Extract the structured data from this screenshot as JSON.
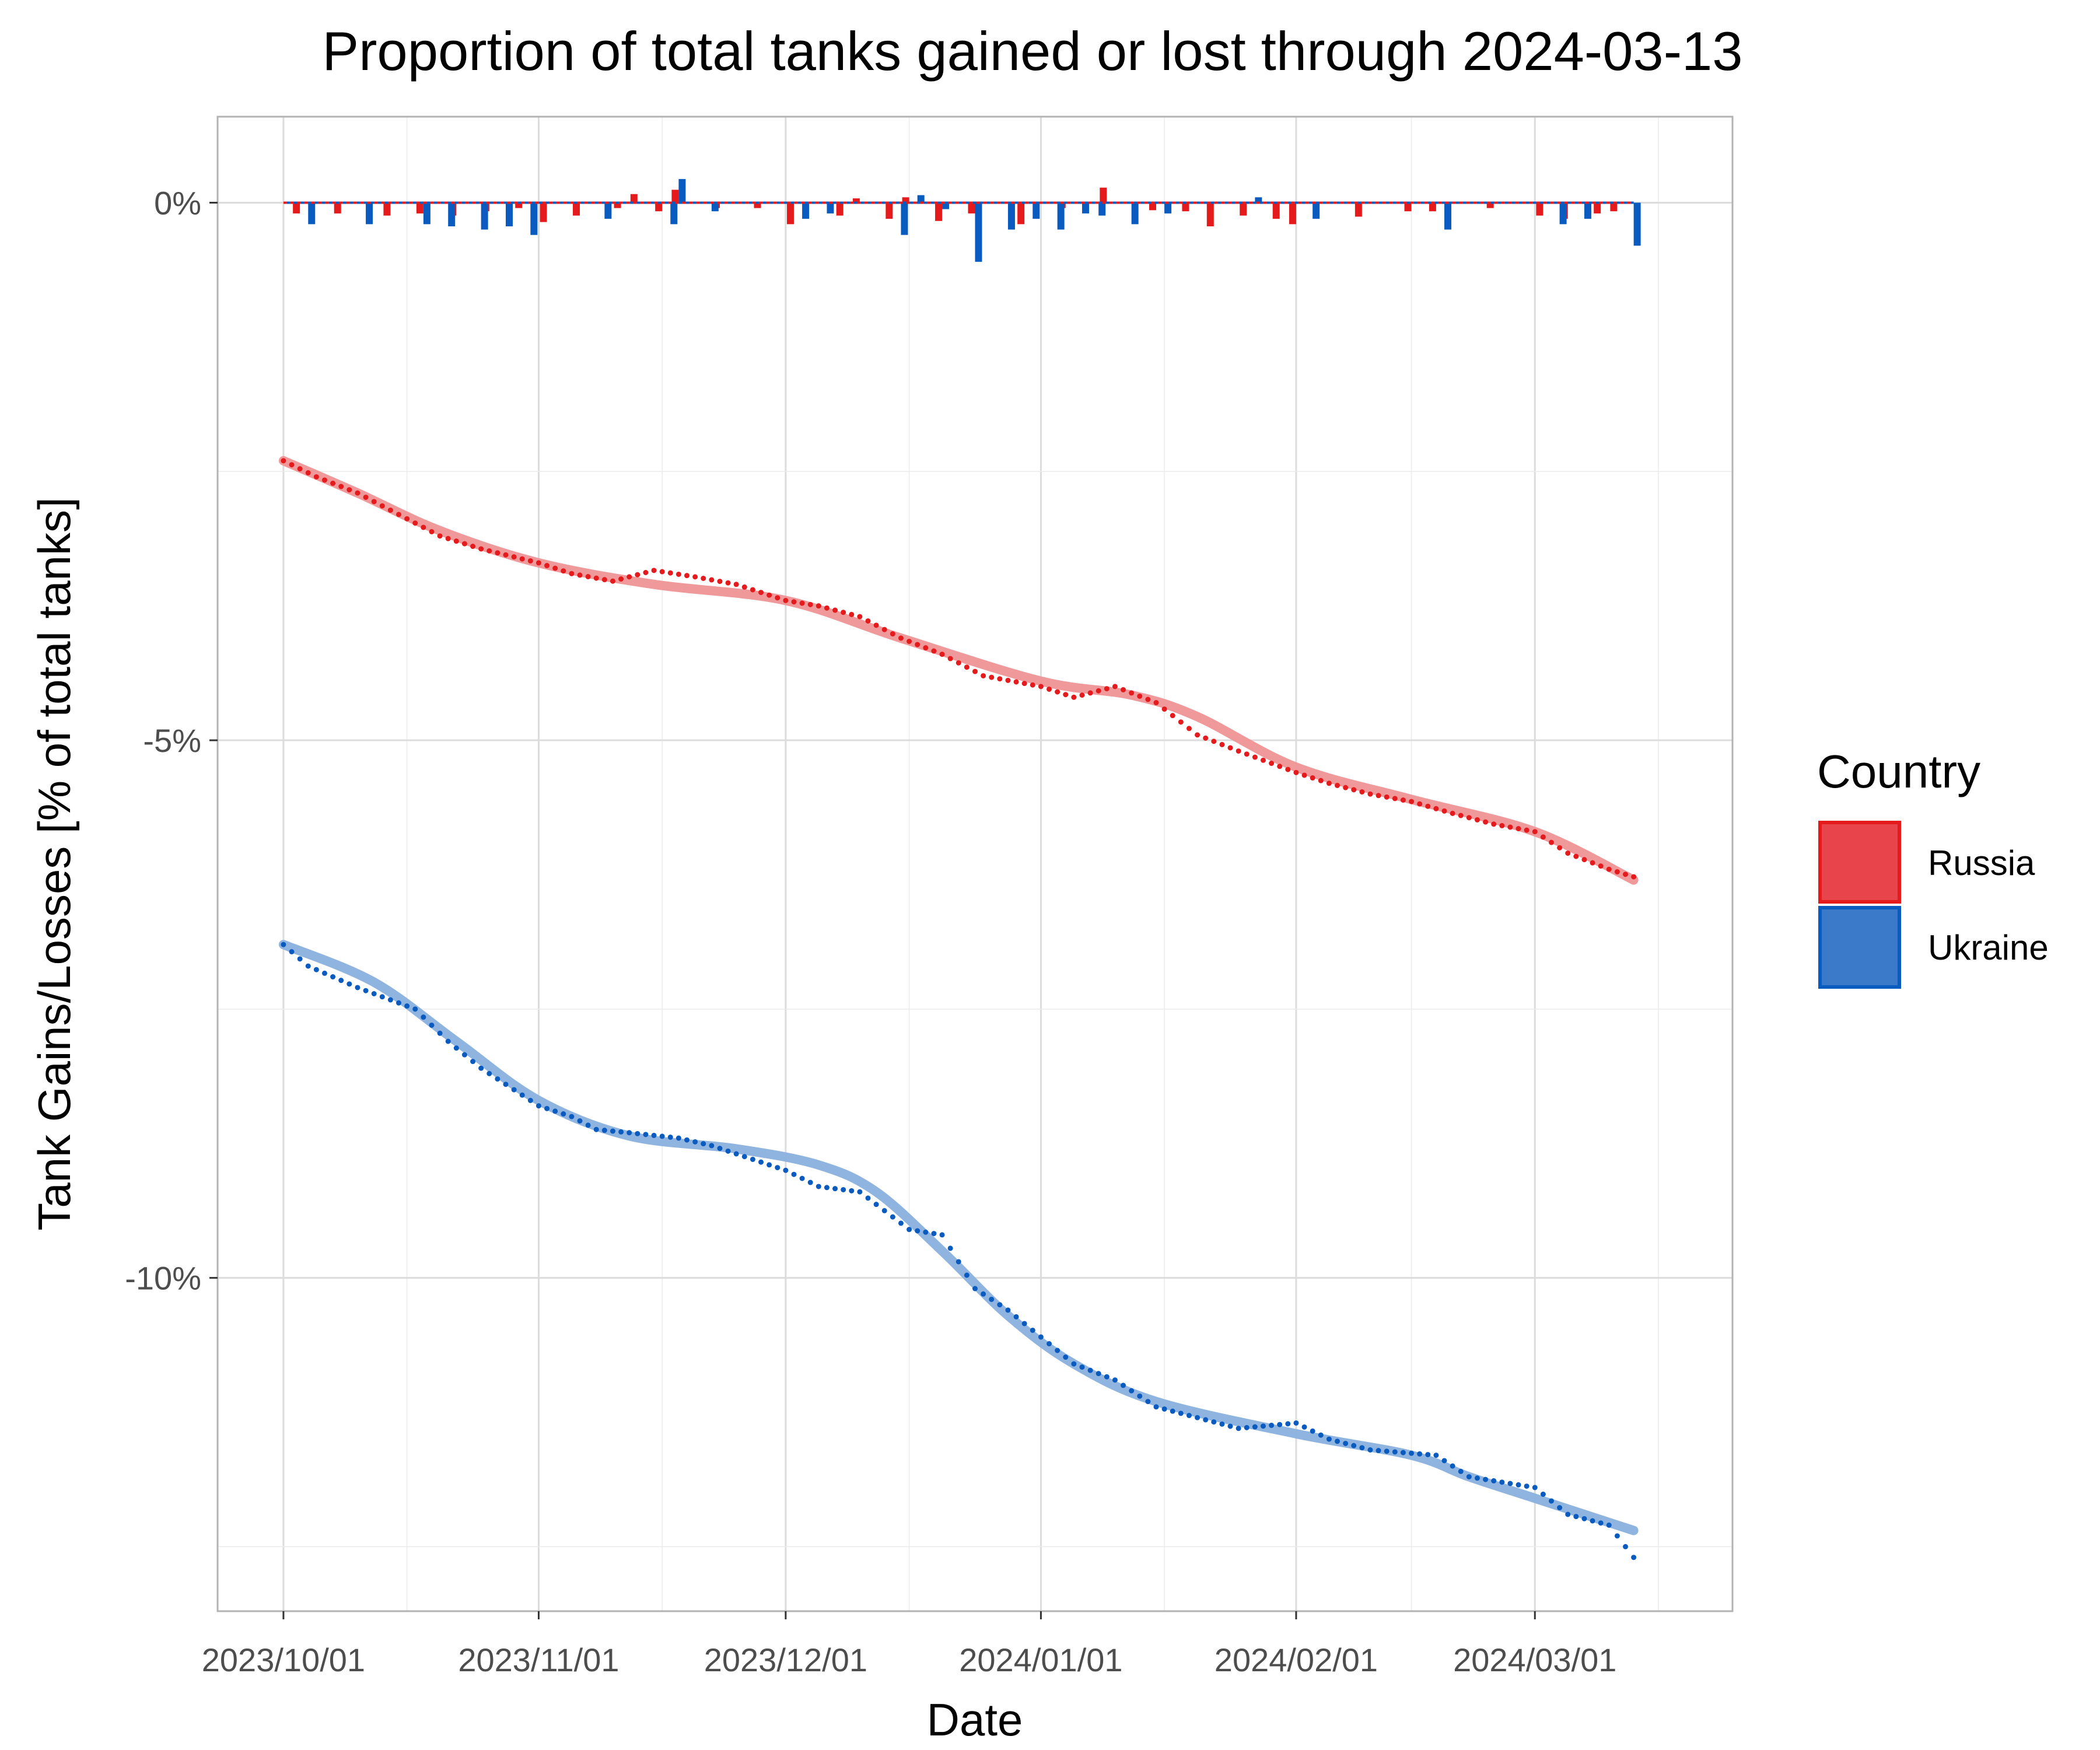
{
  "chart_data": {
    "type": "line",
    "title": "Proportion of total tanks gained or lost through 2024-03-13",
    "xlabel": "Date",
    "ylabel": "Tank Gains/Losses [% of total tanks]",
    "x_ticks": [
      "2023/10/01",
      "2023/11/01",
      "2023/12/01",
      "2024/01/01",
      "2024/02/01",
      "2024/03/01"
    ],
    "y_ticks": [
      "0%",
      "-5%",
      "-10%"
    ],
    "ylim": [
      -13.1,
      0.8
    ],
    "xlim": [
      "2023-09-23",
      "2024-03-25"
    ],
    "grid": true,
    "legend": {
      "title": "Country",
      "placement": "right"
    },
    "colors": {
      "Russia": "#e41a1c",
      "Russia_fill": "#e8444b",
      "Russia_smooth": "#ef9396",
      "Ukraine": "#0a5bbf",
      "Ukraine_fill": "#3b7ac9",
      "Ukraine_smooth": "#8ab0de"
    },
    "series": [
      {
        "name": "Russia",
        "cumulative_points": [
          [
            "2023-10-01",
            -2.4
          ],
          [
            "2023-10-05",
            -2.55
          ],
          [
            "2023-10-10",
            -2.7
          ],
          [
            "2023-10-15",
            -2.9
          ],
          [
            "2023-10-20",
            -3.1
          ],
          [
            "2023-10-25",
            -3.22
          ],
          [
            "2023-11-01",
            -3.35
          ],
          [
            "2023-11-05",
            -3.45
          ],
          [
            "2023-11-10",
            -3.52
          ],
          [
            "2023-11-15",
            -3.42
          ],
          [
            "2023-11-20",
            -3.48
          ],
          [
            "2023-11-25",
            -3.55
          ],
          [
            "2023-12-01",
            -3.7
          ],
          [
            "2023-12-05",
            -3.75
          ],
          [
            "2023-12-10",
            -3.85
          ],
          [
            "2023-12-15",
            -4.05
          ],
          [
            "2023-12-20",
            -4.2
          ],
          [
            "2023-12-25",
            -4.4
          ],
          [
            "2024-01-01",
            -4.5
          ],
          [
            "2024-01-05",
            -4.6
          ],
          [
            "2024-01-10",
            -4.5
          ],
          [
            "2024-01-15",
            -4.65
          ],
          [
            "2024-01-20",
            -4.95
          ],
          [
            "2024-01-25",
            -5.1
          ],
          [
            "2024-02-01",
            -5.3
          ],
          [
            "2024-02-05",
            -5.4
          ],
          [
            "2024-02-10",
            -5.5
          ],
          [
            "2024-02-15",
            -5.57
          ],
          [
            "2024-02-20",
            -5.68
          ],
          [
            "2024-02-25",
            -5.78
          ],
          [
            "2024-03-01",
            -5.85
          ],
          [
            "2024-03-05",
            -6.05
          ],
          [
            "2024-03-10",
            -6.2
          ],
          [
            "2024-03-13",
            -6.27
          ]
        ],
        "smooth_points": [
          [
            "2023-10-01",
            -2.4
          ],
          [
            "2023-10-10",
            -2.7
          ],
          [
            "2023-10-20",
            -3.05
          ],
          [
            "2023-11-01",
            -3.35
          ],
          [
            "2023-11-15",
            -3.55
          ],
          [
            "2023-12-01",
            -3.7
          ],
          [
            "2023-12-15",
            -4.05
          ],
          [
            "2024-01-01",
            -4.45
          ],
          [
            "2024-01-12",
            -4.58
          ],
          [
            "2024-01-20",
            -4.78
          ],
          [
            "2024-02-01",
            -5.25
          ],
          [
            "2024-02-15",
            -5.55
          ],
          [
            "2024-03-01",
            -5.85
          ],
          [
            "2024-03-13",
            -6.3
          ]
        ],
        "daily_changes": [
          [
            "2023-10-03",
            -0.1
          ],
          [
            "2023-10-08",
            -0.1
          ],
          [
            "2023-10-14",
            -0.12
          ],
          [
            "2023-10-18",
            -0.1
          ],
          [
            "2023-10-22",
            -0.12
          ],
          [
            "2023-10-26",
            -0.08
          ],
          [
            "2023-10-30",
            -0.05
          ],
          [
            "2023-11-02",
            -0.18
          ],
          [
            "2023-11-06",
            -0.12
          ],
          [
            "2023-11-11",
            -0.05
          ],
          [
            "2023-11-13",
            0.08
          ],
          [
            "2023-11-16",
            -0.08
          ],
          [
            "2023-11-18",
            0.12
          ],
          [
            "2023-11-23",
            -0.05
          ],
          [
            "2023-11-28",
            -0.05
          ],
          [
            "2023-12-02",
            -0.2
          ],
          [
            "2023-12-08",
            -0.12
          ],
          [
            "2023-12-10",
            0.04
          ],
          [
            "2023-12-14",
            -0.15
          ],
          [
            "2023-12-16",
            0.05
          ],
          [
            "2023-12-20",
            -0.17
          ],
          [
            "2023-12-24",
            -0.1
          ],
          [
            "2023-12-30",
            -0.2
          ],
          [
            "2024-01-04",
            -0.05
          ],
          [
            "2024-01-09",
            0.14
          ],
          [
            "2024-01-15",
            -0.07
          ],
          [
            "2024-01-19",
            -0.08
          ],
          [
            "2024-01-22",
            -0.22
          ],
          [
            "2024-01-26",
            -0.12
          ],
          [
            "2024-01-30",
            -0.15
          ],
          [
            "2024-02-01",
            -0.2
          ],
          [
            "2024-02-09",
            -0.13
          ],
          [
            "2024-02-15",
            -0.08
          ],
          [
            "2024-02-18",
            -0.08
          ],
          [
            "2024-02-25",
            -0.05
          ],
          [
            "2024-03-02",
            -0.12
          ],
          [
            "2024-03-05",
            -0.15
          ],
          [
            "2024-03-09",
            -0.1
          ],
          [
            "2024-03-11",
            -0.08
          ]
        ]
      },
      {
        "name": "Ukraine",
        "cumulative_points": [
          [
            "2023-10-01",
            -6.9
          ],
          [
            "2023-10-04",
            -7.1
          ],
          [
            "2023-10-10",
            -7.3
          ],
          [
            "2023-10-17",
            -7.5
          ],
          [
            "2023-10-21",
            -7.8
          ],
          [
            "2023-10-25",
            -8.05
          ],
          [
            "2023-11-01",
            -8.4
          ],
          [
            "2023-11-05",
            -8.5
          ],
          [
            "2023-11-08",
            -8.62
          ],
          [
            "2023-11-12",
            -8.65
          ],
          [
            "2023-11-18",
            -8.7
          ],
          [
            "2023-11-22",
            -8.77
          ],
          [
            "2023-12-01",
            -9.0
          ],
          [
            "2023-12-05",
            -9.15
          ],
          [
            "2023-12-10",
            -9.2
          ],
          [
            "2023-12-16",
            -9.55
          ],
          [
            "2023-12-20",
            -9.6
          ],
          [
            "2023-12-24",
            -10.1
          ],
          [
            "2023-12-28",
            -10.3
          ],
          [
            "2024-01-01",
            -10.55
          ],
          [
            "2024-01-05",
            -10.8
          ],
          [
            "2024-01-10",
            -10.95
          ],
          [
            "2024-01-15",
            -11.2
          ],
          [
            "2024-01-20",
            -11.3
          ],
          [
            "2024-01-25",
            -11.4
          ],
          [
            "2024-02-01",
            -11.35
          ],
          [
            "2024-02-05",
            -11.5
          ],
          [
            "2024-02-10",
            -11.6
          ],
          [
            "2024-02-18",
            -11.65
          ],
          [
            "2024-02-22",
            -11.85
          ],
          [
            "2024-03-01",
            -11.95
          ],
          [
            "2024-03-05",
            -12.2
          ],
          [
            "2024-03-10",
            -12.3
          ],
          [
            "2024-03-13",
            -12.6
          ]
        ],
        "smooth_points": [
          [
            "2023-10-01",
            -6.9
          ],
          [
            "2023-10-12",
            -7.25
          ],
          [
            "2023-10-22",
            -7.8
          ],
          [
            "2023-11-01",
            -8.35
          ],
          [
            "2023-11-12",
            -8.68
          ],
          [
            "2023-11-25",
            -8.8
          ],
          [
            "2023-12-05",
            -8.95
          ],
          [
            "2023-12-12",
            -9.2
          ],
          [
            "2023-12-20",
            -9.75
          ],
          [
            "2023-12-28",
            -10.35
          ],
          [
            "2024-01-05",
            -10.8
          ],
          [
            "2024-01-15",
            -11.15
          ],
          [
            "2024-02-01",
            -11.45
          ],
          [
            "2024-02-15",
            -11.65
          ],
          [
            "2024-02-22",
            -11.85
          ],
          [
            "2024-03-01",
            -12.05
          ],
          [
            "2024-03-13",
            -12.35
          ]
        ],
        "daily_changes": [
          [
            "2023-10-04",
            -0.2
          ],
          [
            "2023-10-11",
            -0.2
          ],
          [
            "2023-10-18",
            -0.2
          ],
          [
            "2023-10-21",
            -0.22
          ],
          [
            "2023-10-25",
            -0.25
          ],
          [
            "2023-10-28",
            -0.22
          ],
          [
            "2023-10-31",
            -0.3
          ],
          [
            "2023-11-09",
            -0.15
          ],
          [
            "2023-11-17",
            -0.2
          ],
          [
            "2023-11-18",
            0.22
          ],
          [
            "2023-11-22",
            -0.08
          ],
          [
            "2023-12-03",
            -0.15
          ],
          [
            "2023-12-06",
            -0.1
          ],
          [
            "2023-12-15",
            -0.3
          ],
          [
            "2023-12-17",
            0.07
          ],
          [
            "2023-12-20",
            -0.06
          ],
          [
            "2023-12-24",
            -0.55
          ],
          [
            "2023-12-28",
            -0.25
          ],
          [
            "2023-12-31",
            -0.15
          ],
          [
            "2024-01-03",
            -0.25
          ],
          [
            "2024-01-06",
            -0.1
          ],
          [
            "2024-01-08",
            -0.12
          ],
          [
            "2024-01-12",
            -0.2
          ],
          [
            "2024-01-16",
            -0.1
          ],
          [
            "2024-01-27",
            0.05
          ],
          [
            "2024-02-03",
            -0.15
          ],
          [
            "2024-02-19",
            -0.25
          ],
          [
            "2024-03-04",
            -0.2
          ],
          [
            "2024-03-07",
            -0.15
          ],
          [
            "2024-03-13",
            -0.4
          ]
        ]
      }
    ]
  }
}
